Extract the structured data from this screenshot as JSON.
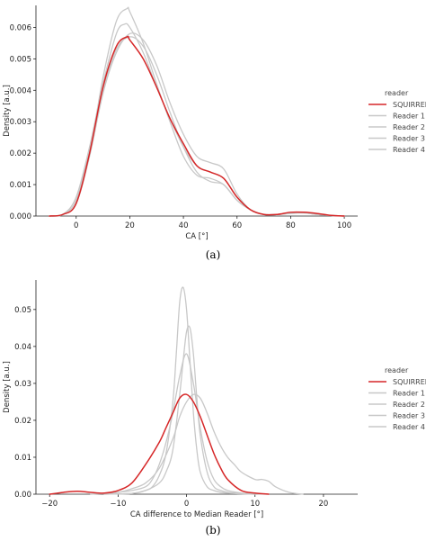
{
  "chart_data": [
    {
      "type": "line",
      "caption": "(a)",
      "xlabel": "CA [°]",
      "ylabel": "Density [a.u.]",
      "xlim": [
        -15,
        105
      ],
      "ylim": [
        0,
        0.0067
      ],
      "xticks": [
        0,
        20,
        40,
        60,
        80,
        100
      ],
      "yticks": [
        0.0,
        0.001,
        0.002,
        0.003,
        0.004,
        0.005,
        0.006
      ],
      "ytick_labels": [
        "0.000",
        "0.001",
        "0.002",
        "0.003",
        "0.004",
        "0.005",
        "0.006"
      ],
      "grid": false,
      "legend": {
        "title": "reader",
        "position": "right"
      },
      "series": [
        {
          "name": "Reader 1",
          "color": "#c8c8c8",
          "x": [
            -10,
            -5,
            0,
            5,
            10,
            15,
            18,
            20,
            25,
            30,
            35,
            40,
            45,
            50,
            55,
            60,
            65,
            70,
            75,
            80,
            85,
            90,
            95,
            100
          ],
          "y": [
            0,
            5e-05,
            0.0006,
            0.0022,
            0.0042,
            0.0058,
            0.0061,
            0.006,
            0.0052,
            0.0041,
            0.0031,
            0.0022,
            0.0016,
            0.0014,
            0.0012,
            0.0006,
            0.0002,
            5e-05,
            5e-05,
            0.0001,
            0.0001,
            5e-05,
            2e-05,
            0
          ]
        },
        {
          "name": "Reader 2",
          "color": "#c8c8c8",
          "x": [
            -10,
            -5,
            0,
            5,
            10,
            15,
            19,
            20,
            25,
            30,
            35,
            40,
            45,
            50,
            55,
            60,
            65,
            70,
            75,
            80,
            85,
            90,
            95,
            100
          ],
          "y": [
            0,
            5e-05,
            0.0004,
            0.002,
            0.0044,
            0.0062,
            0.0066,
            0.0065,
            0.0055,
            0.0042,
            0.003,
            0.0019,
            0.0013,
            0.0012,
            0.001,
            0.0005,
            0.0002,
            5e-05,
            5e-05,
            8e-05,
            0.0001,
            5e-05,
            2e-05,
            0
          ]
        },
        {
          "name": "Reader 3",
          "color": "#c8c8c8",
          "x": [
            -10,
            -5,
            0,
            5,
            10,
            15,
            20,
            25,
            30,
            35,
            40,
            45,
            50,
            55,
            60,
            65,
            70,
            75,
            80,
            85,
            90,
            95,
            100
          ],
          "y": [
            0,
            5e-05,
            0.0005,
            0.0021,
            0.004,
            0.0053,
            0.0057,
            0.0054,
            0.0045,
            0.0033,
            0.0022,
            0.0014,
            0.0011,
            0.001,
            0.0005,
            0.0002,
            5e-05,
            5e-05,
            0.0001,
            0.0001,
            5e-05,
            2e-05,
            0
          ]
        },
        {
          "name": "Reader 4",
          "color": "#c8c8c8",
          "x": [
            -10,
            -5,
            0,
            5,
            10,
            15,
            20,
            25,
            30,
            35,
            40,
            45,
            50,
            55,
            60,
            65,
            70,
            75,
            80,
            85,
            90,
            95,
            100
          ],
          "y": [
            0,
            5e-05,
            0.0004,
            0.0019,
            0.0039,
            0.0052,
            0.0058,
            0.0056,
            0.0048,
            0.0036,
            0.0026,
            0.0019,
            0.0017,
            0.0015,
            0.0007,
            0.0002,
            5e-05,
            5e-05,
            0.0001,
            0.0001,
            5e-05,
            2e-05,
            0
          ]
        },
        {
          "name": "SQUIRREL",
          "color": "#d62728",
          "x": [
            -10,
            -5,
            0,
            5,
            10,
            15,
            19,
            20,
            25,
            30,
            35,
            40,
            45,
            50,
            55,
            60,
            65,
            70,
            75,
            80,
            85,
            90,
            95,
            100
          ],
          "y": [
            0,
            5e-05,
            0.0004,
            0.002,
            0.0041,
            0.0054,
            0.0057,
            0.0056,
            0.005,
            0.0041,
            0.0031,
            0.0023,
            0.0016,
            0.0014,
            0.0012,
            0.0006,
            0.0002,
            5e-05,
            5e-05,
            0.00012,
            0.00012,
            8e-05,
            2e-05,
            0
          ]
        }
      ]
    },
    {
      "type": "line",
      "caption": "(b)",
      "xlabel": "CA difference to Median Reader [°]",
      "ylabel": "Density [a.u.]",
      "xlim": [
        -22,
        25
      ],
      "ylim": [
        0,
        0.058
      ],
      "xticks": [
        -20,
        -10,
        0,
        10,
        20
      ],
      "yticks": [
        0.0,
        0.01,
        0.02,
        0.03,
        0.04,
        0.05
      ],
      "ytick_labels": [
        "0.00",
        "0.01",
        "0.02",
        "0.03",
        "0.04",
        "0.05"
      ],
      "grid": false,
      "legend": {
        "title": "reader",
        "position": "right"
      },
      "series": [
        {
          "name": "Reader 1",
          "color": "#c8c8c8",
          "x": [
            -12,
            -8,
            -6,
            -5,
            -4,
            -3,
            -2,
            -1.5,
            -1,
            -0.5,
            0,
            0.5,
            1,
            1.5,
            2,
            3,
            4,
            5,
            6,
            8,
            10
          ],
          "y": [
            0,
            0.0002,
            0.001,
            0.002,
            0.005,
            0.011,
            0.025,
            0.038,
            0.052,
            0.056,
            0.05,
            0.036,
            0.022,
            0.012,
            0.006,
            0.002,
            0.001,
            0.0005,
            0.0003,
            0.0001,
            0
          ]
        },
        {
          "name": "Reader 2",
          "color": "#c8c8c8",
          "x": [
            -12,
            -8,
            -6,
            -4,
            -3,
            -2,
            -1,
            -0.5,
            0,
            0.5,
            1,
            1.5,
            2,
            3,
            4,
            5,
            6,
            8,
            12
          ],
          "y": [
            0,
            0.0002,
            0.001,
            0.003,
            0.006,
            0.012,
            0.027,
            0.036,
            0.044,
            0.045,
            0.038,
            0.026,
            0.016,
            0.006,
            0.002,
            0.001,
            0.0005,
            0.0002,
            0
          ]
        },
        {
          "name": "Reader 3",
          "color": "#c8c8c8",
          "x": [
            -14,
            -10,
            -8,
            -6,
            -5,
            -4,
            -3,
            -2,
            -1,
            0,
            1,
            2,
            3,
            4,
            5,
            6,
            8,
            10
          ],
          "y": [
            0,
            0.0005,
            0.001,
            0.002,
            0.004,
            0.008,
            0.014,
            0.022,
            0.032,
            0.038,
            0.03,
            0.018,
            0.009,
            0.004,
            0.002,
            0.001,
            0.0003,
            0
          ]
        },
        {
          "name": "Reader 4",
          "color": "#c8c8c8",
          "x": [
            -14,
            -10,
            -8,
            -6,
            -4,
            -2,
            -1,
            0,
            1,
            2,
            3,
            4,
            5,
            6,
            7,
            8,
            10,
            11,
            12,
            13,
            15,
            17
          ],
          "y": [
            0,
            0.0005,
            0.0015,
            0.003,
            0.007,
            0.015,
            0.021,
            0.025,
            0.027,
            0.026,
            0.022,
            0.017,
            0.013,
            0.01,
            0.008,
            0.006,
            0.004,
            0.004,
            0.0035,
            0.002,
            0.0005,
            0
          ]
        },
        {
          "name": "SQUIRREL",
          "color": "#d62728",
          "x": [
            -20,
            -18,
            -16,
            -14,
            -12,
            -10,
            -8,
            -6,
            -4,
            -3,
            -2,
            -1,
            0,
            1,
            2,
            3,
            4,
            5,
            6,
            8,
            10,
            12
          ],
          "y": [
            0,
            0.0005,
            0.0008,
            0.0005,
            0.0003,
            0.001,
            0.003,
            0.008,
            0.014,
            0.018,
            0.022,
            0.026,
            0.027,
            0.025,
            0.021,
            0.016,
            0.011,
            0.007,
            0.004,
            0.001,
            0.0003,
            0
          ]
        }
      ]
    }
  ]
}
